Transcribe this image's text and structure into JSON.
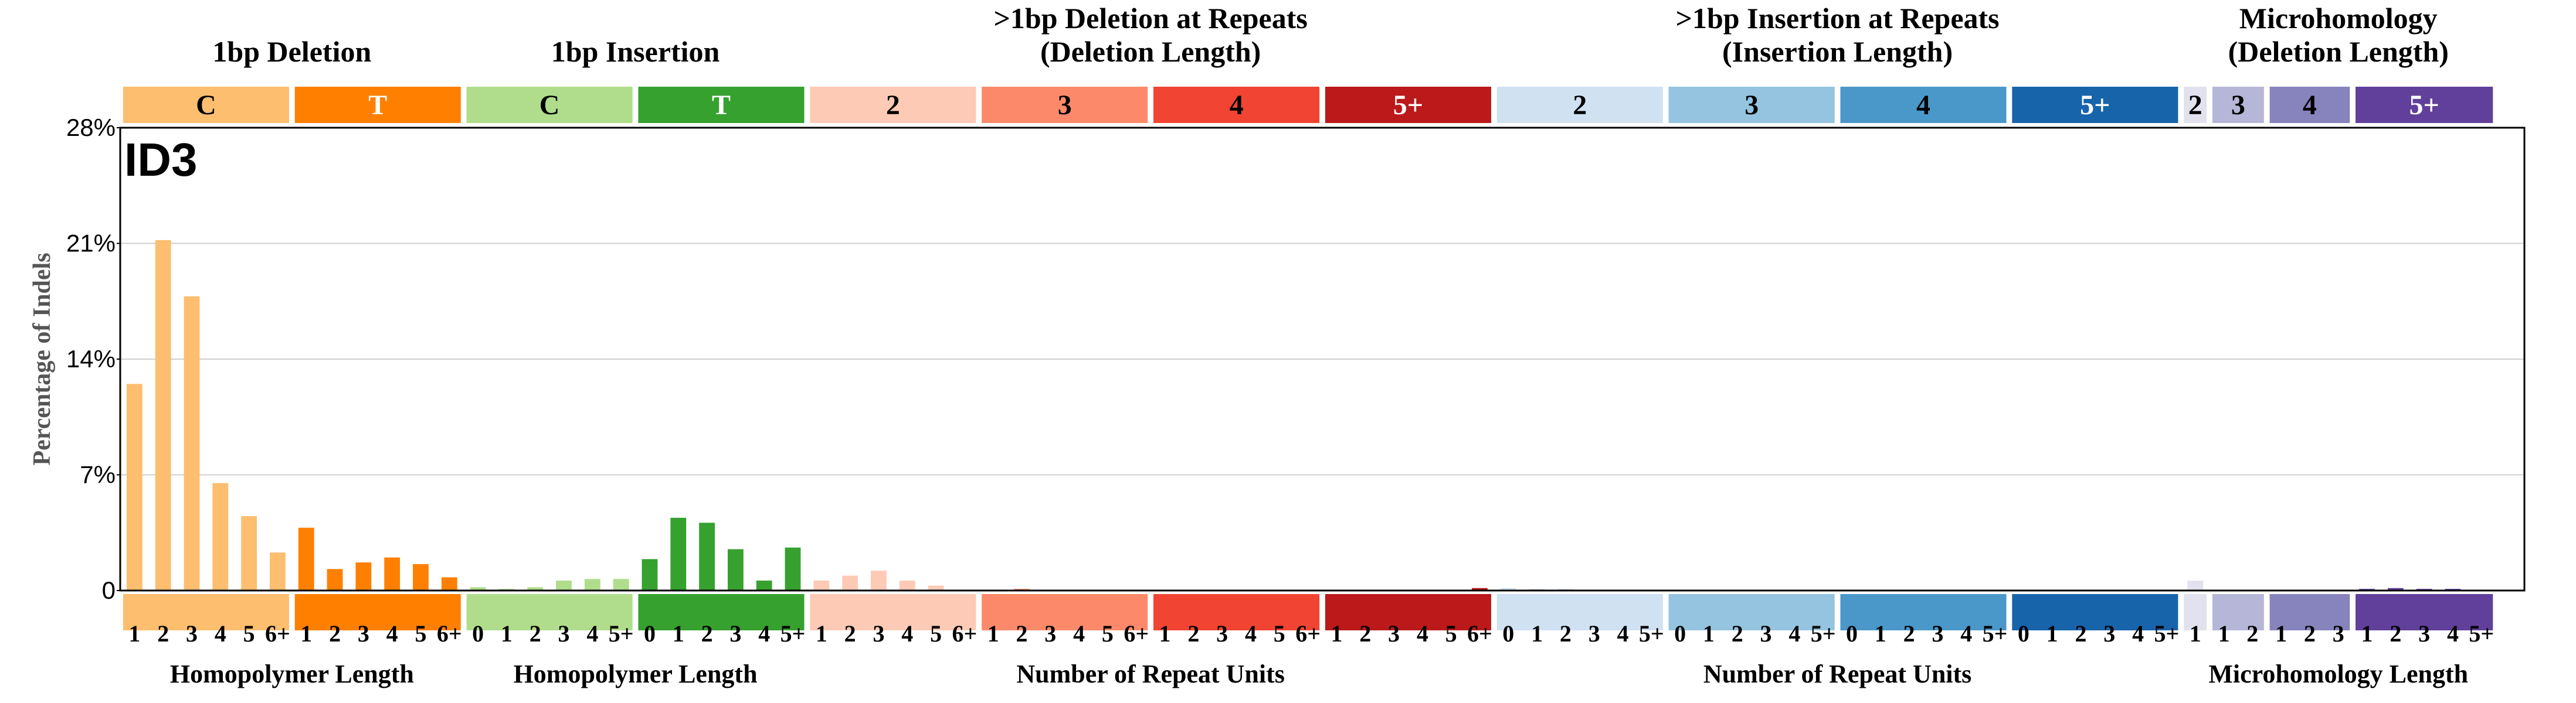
{
  "chart_data": {
    "type": "bar",
    "title": "ID3",
    "ylabel": "Percentage of Indels",
    "ylim": [
      0,
      28
    ],
    "yticks": [
      "0",
      "7%",
      "14%",
      "21%",
      "28%"
    ],
    "ytick_values": [
      0,
      7,
      14,
      21,
      28
    ],
    "grid": true,
    "groups": [
      {
        "header": "1bp Deletion",
        "headerLines": [
          "1bp Deletion"
        ],
        "headerSpan": [
          0,
          1
        ],
        "bottomTitle": "Homopolymer Length",
        "bottomSpan": [
          0,
          1
        ]
      },
      {
        "header": "1bp Insertion",
        "headerLines": [
          "1bp Insertion"
        ],
        "headerSpan": [
          2,
          3
        ],
        "bottomTitle": "Homopolymer Length",
        "bottomSpan": [
          2,
          3
        ]
      },
      {
        "header": ">1bp Deletion at Repeats (Deletion Length)",
        "headerLines": [
          ">1bp Deletion at Repeats",
          "(Deletion Length)"
        ],
        "headerSpan": [
          4,
          7
        ],
        "bottomTitle": "Number of Repeat Units",
        "bottomSpan": [
          4,
          7
        ]
      },
      {
        "header": ">1bp Insertion at Repeats (Insertion Length)",
        "headerLines": [
          ">1bp Insertion at Repeats",
          "(Insertion Length)"
        ],
        "headerSpan": [
          8,
          11
        ],
        "bottomTitle": "Number of Repeat Units",
        "bottomSpan": [
          8,
          11
        ]
      },
      {
        "header": "Microhomology (Deletion Length)",
        "headerLines": [
          "Microhomology",
          "(Deletion Length)"
        ],
        "headerSpan": [
          12,
          15
        ],
        "bottomTitle": "Microhomology Length",
        "bottomSpan": [
          12,
          15
        ]
      }
    ],
    "categories": [
      {
        "label": "C",
        "color": "#FDBE6F",
        "textColor": "#000000",
        "ticks": [
          "1",
          "2",
          "3",
          "4",
          "5",
          "6+"
        ],
        "values": [
          12.5,
          21.2,
          17.8,
          6.5,
          4.5,
          2.3
        ]
      },
      {
        "label": "T",
        "color": "#FF8001",
        "textColor": "#ffffff",
        "ticks": [
          "1",
          "2",
          "3",
          "4",
          "5",
          "6+"
        ],
        "values": [
          3.8,
          1.3,
          1.7,
          2.0,
          1.6,
          0.8
        ]
      },
      {
        "label": "C",
        "color": "#B0DD8B",
        "textColor": "#000000",
        "ticks": [
          "0",
          "1",
          "2",
          "3",
          "4",
          "5+"
        ],
        "values": [
          0.2,
          0.1,
          0.2,
          0.6,
          0.7,
          0.7
        ]
      },
      {
        "label": "T",
        "color": "#36A12E",
        "textColor": "#ffffff",
        "ticks": [
          "0",
          "1",
          "2",
          "3",
          "4",
          "5+"
        ],
        "values": [
          1.9,
          4.4,
          4.1,
          2.5,
          0.6,
          2.6
        ]
      },
      {
        "label": "2",
        "color": "#FDCAB5",
        "textColor": "#000000",
        "ticks": [
          "1",
          "2",
          "3",
          "4",
          "5",
          "6+"
        ],
        "values": [
          0.6,
          0.9,
          1.2,
          0.6,
          0.3,
          0.05
        ]
      },
      {
        "label": "3",
        "color": "#FC8A6A",
        "textColor": "#000000",
        "ticks": [
          "1",
          "2",
          "3",
          "4",
          "5",
          "6+"
        ],
        "values": [
          0.05,
          0.1,
          0.05,
          0.0,
          0.0,
          0.0
        ]
      },
      {
        "label": "4",
        "color": "#F14432",
        "textColor": "#000000",
        "ticks": [
          "1",
          "2",
          "3",
          "4",
          "5",
          "6+"
        ],
        "values": [
          0.0,
          0.0,
          0.05,
          0.05,
          0.0,
          0.0
        ]
      },
      {
        "label": "5+",
        "color": "#BC191A",
        "textColor": "#ffffff",
        "ticks": [
          "1",
          "2",
          "3",
          "4",
          "5",
          "6+"
        ],
        "values": [
          0.0,
          0.0,
          0.0,
          0.0,
          0.0,
          0.15
        ]
      },
      {
        "label": "2",
        "color": "#D0E1F2",
        "textColor": "#000000",
        "ticks": [
          "0",
          "1",
          "2",
          "3",
          "4",
          "5+"
        ],
        "values": [
          0.15,
          0.1,
          0.1,
          0.05,
          0.05,
          0.0
        ]
      },
      {
        "label": "3",
        "color": "#94C4DF",
        "textColor": "#000000",
        "ticks": [
          "0",
          "1",
          "2",
          "3",
          "4",
          "5+"
        ],
        "values": [
          0.05,
          0.05,
          0.0,
          0.0,
          0.0,
          0.0
        ]
      },
      {
        "label": "4",
        "color": "#4A98C9",
        "textColor": "#000000",
        "ticks": [
          "0",
          "1",
          "2",
          "3",
          "4",
          "5+"
        ],
        "values": [
          0.0,
          0.0,
          0.0,
          0.0,
          0.0,
          0.0
        ]
      },
      {
        "label": "5+",
        "color": "#1764AB",
        "textColor": "#ffffff",
        "ticks": [
          "0",
          "1",
          "2",
          "3",
          "4",
          "5+"
        ],
        "values": [
          0.0,
          0.0,
          0.0,
          0.0,
          0.0,
          0.05
        ]
      },
      {
        "label": "2",
        "color": "#E2E2EF",
        "textColor": "#000000",
        "ticks": [
          "1"
        ],
        "values": [
          0.6
        ]
      },
      {
        "label": "3",
        "color": "#B6B6D8",
        "textColor": "#000000",
        "ticks": [
          "1",
          "2"
        ],
        "values": [
          0.05,
          0.05
        ]
      },
      {
        "label": "4",
        "color": "#8683BD",
        "textColor": "#000000",
        "ticks": [
          "1",
          "2",
          "3"
        ],
        "values": [
          0.05,
          0.05,
          0.05
        ]
      },
      {
        "label": "5+",
        "color": "#61409B",
        "textColor": "#ffffff",
        "ticks": [
          "1",
          "2",
          "3",
          "4",
          "5+"
        ],
        "values": [
          0.1,
          0.15,
          0.1,
          0.1,
          0.05
        ]
      }
    ]
  }
}
